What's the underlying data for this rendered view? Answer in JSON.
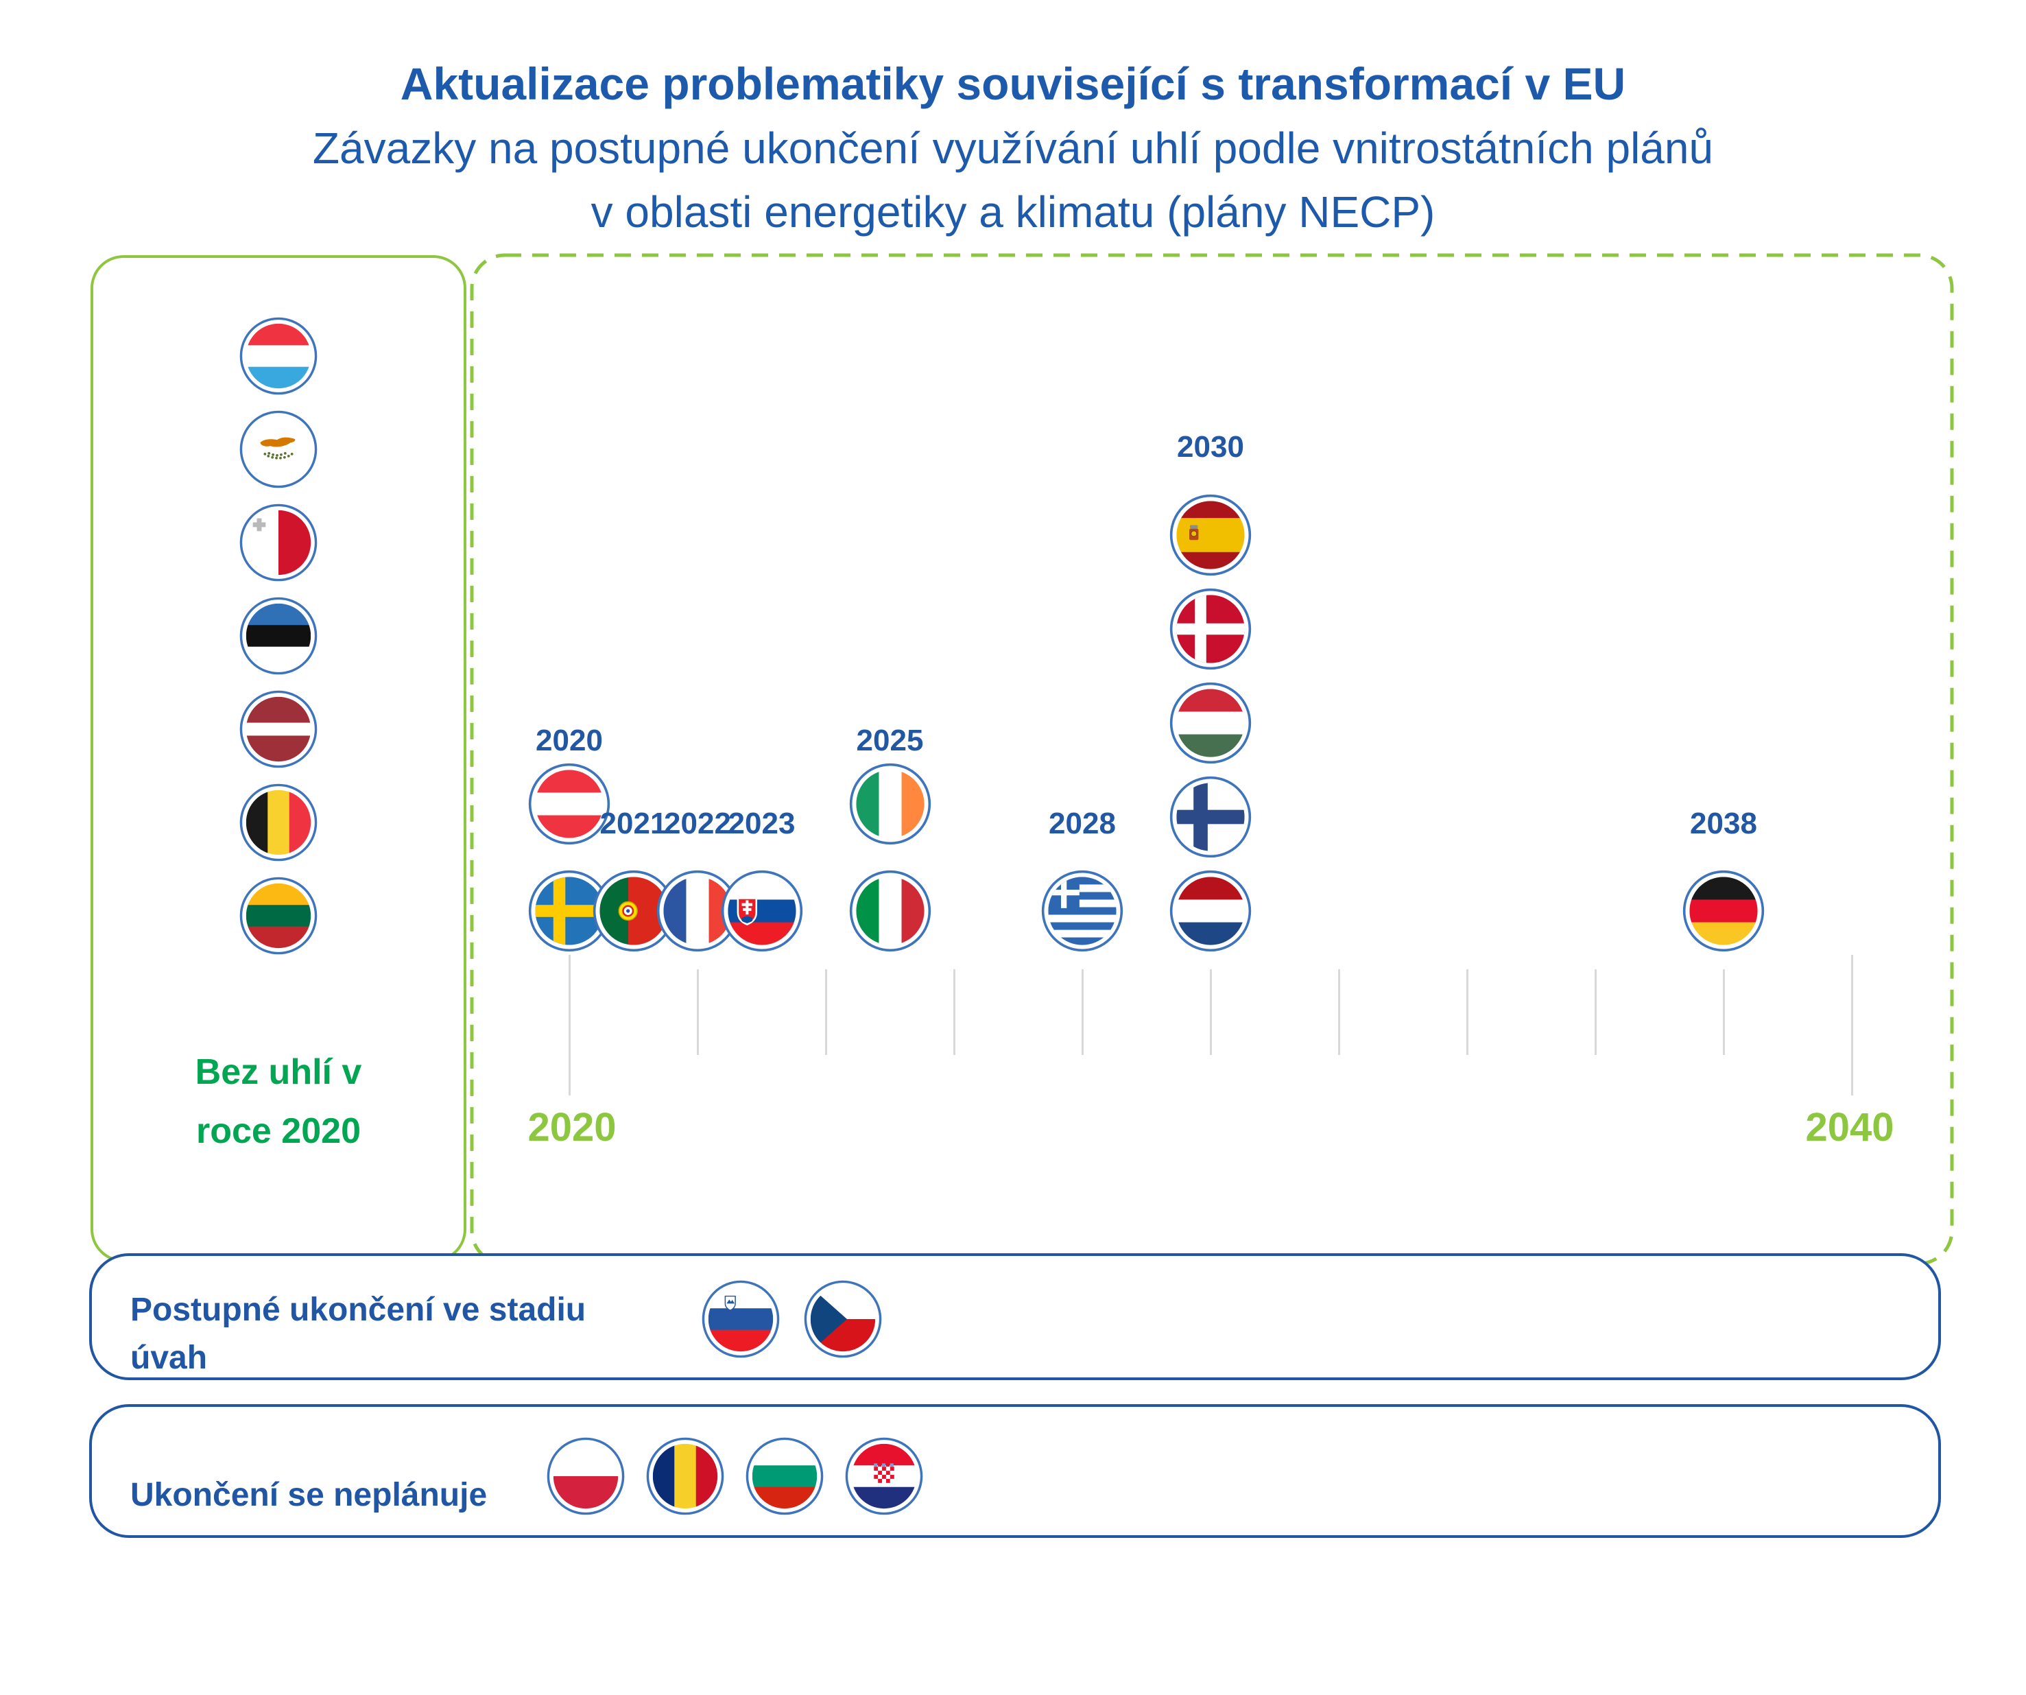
{
  "title": {
    "line1": "Aktualizace problematiky související s transformací v EU",
    "line2": "Závazky na postupné ukončení využívání uhlí podle vnitrostátních plánů",
    "line3": "v oblasti energetiky a klimatu (plány NECP)"
  },
  "colors": {
    "title_blue": "#1E5AAB",
    "year_blue": "#2257A4",
    "navy": "#2156A5",
    "green_bright": "#00A651",
    "green_light": "#8DC63F",
    "tick_gray": "#D9D9D9",
    "flag_ring": "#3E74BC"
  },
  "no_coal_box": {
    "label": "Bez uhlí v roce 2020",
    "label_lines": [
      "Bez uhlí v",
      "roce 2020"
    ],
    "countries": [
      {
        "name": "Luxembourg",
        "flag": "lu"
      },
      {
        "name": "Cyprus",
        "flag": "cy"
      },
      {
        "name": "Malta",
        "flag": "mt"
      },
      {
        "name": "Estonia",
        "flag": "ee"
      },
      {
        "name": "Latvia",
        "flag": "lv"
      },
      {
        "name": "Belgium",
        "flag": "be"
      },
      {
        "name": "Lithuania",
        "flag": "lt"
      }
    ]
  },
  "timeline": {
    "axis": {
      "start_label": "2020",
      "end_label": "2040",
      "start_year": 2020,
      "end_year": 2040,
      "tick_step_years": 2
    },
    "columns": [
      {
        "year": "2020",
        "label_position": "upper",
        "flags": [
          {
            "country": "Austria",
            "flag": "at",
            "row": "upper"
          },
          {
            "country": "Sweden",
            "flag": "se",
            "row": "bottom"
          }
        ]
      },
      {
        "year": "2021",
        "label_position": "mid",
        "flags": [
          {
            "country": "Portugal",
            "flag": "pt",
            "row": "bottom"
          }
        ]
      },
      {
        "year": "2022",
        "label_position": "mid",
        "flags": [
          {
            "country": "France",
            "flag": "fr",
            "row": "bottom"
          }
        ]
      },
      {
        "year": "2023",
        "label_position": "mid",
        "flags": [
          {
            "country": "Slovakia",
            "flag": "sk",
            "row": "bottom"
          }
        ]
      },
      {
        "year": "2025",
        "label_position": "upper",
        "flags": [
          {
            "country": "Ireland",
            "flag": "ie",
            "row": "upper"
          },
          {
            "country": "Italy",
            "flag": "it",
            "row": "bottom"
          }
        ]
      },
      {
        "year": "2028",
        "label_position": "mid",
        "flags": [
          {
            "country": "Greece",
            "flag": "gr",
            "row": "bottom"
          }
        ]
      },
      {
        "year": "2030",
        "label_position": "stack",
        "flags": [
          {
            "country": "Spain",
            "flag": "es",
            "row": "stack-0"
          },
          {
            "country": "Denmark",
            "flag": "dk",
            "row": "stack-1"
          },
          {
            "country": "Hungary",
            "flag": "hu",
            "row": "stack-2"
          },
          {
            "country": "Finland",
            "flag": "fi",
            "row": "stack-3"
          },
          {
            "country": "Netherlands",
            "flag": "nl",
            "row": "stack-4"
          }
        ]
      },
      {
        "year": "2038",
        "label_position": "mid",
        "flags": [
          {
            "country": "Germany",
            "flag": "de",
            "row": "bottom"
          }
        ]
      }
    ]
  },
  "consideration_box": {
    "label": "Postupné ukončení ve stadiu úvah",
    "label_lines": [
      "Postupné ukončení ve stadiu",
      "úvah"
    ],
    "countries": [
      {
        "name": "Slovenia",
        "flag": "si"
      },
      {
        "name": "Czech Republic",
        "flag": "cz"
      }
    ]
  },
  "no_plan_box": {
    "label": "Ukončení se neplánuje",
    "countries": [
      {
        "name": "Poland",
        "flag": "pl"
      },
      {
        "name": "Romania",
        "flag": "ro"
      },
      {
        "name": "Bulgaria",
        "flag": "bg"
      },
      {
        "name": "Croatia",
        "flag": "hr"
      }
    ]
  }
}
